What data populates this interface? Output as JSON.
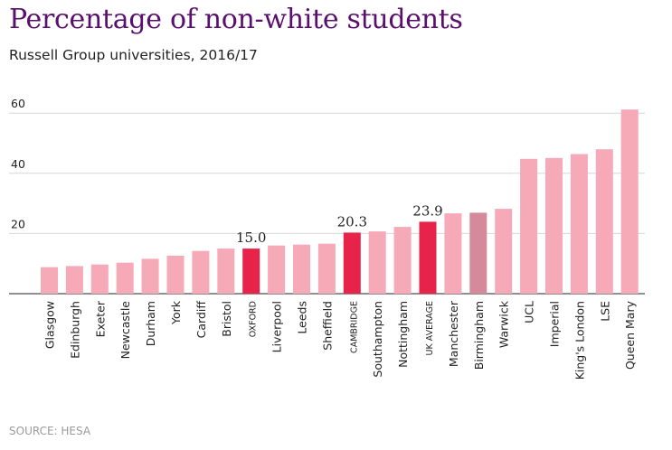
{
  "chart_data": {
    "type": "bar",
    "title": "Percentage of non-white students",
    "subtitle": "Russell Group universities, 2016/17",
    "source": "SOURCE: HESA",
    "ylim": [
      0,
      60
    ],
    "yticks": [
      20,
      40,
      60
    ],
    "grid": true,
    "categories": [
      "Glasgow",
      "Edinburgh",
      "Exeter",
      "Newcastle",
      "Durham",
      "York",
      "Cardiff",
      "Bristol",
      "OXFORD",
      "Liverpool",
      "Leeds",
      "Sheffield",
      "CAMBRIDGE",
      "Southampton",
      "Nottingham",
      "UK AVERAGE",
      "Manchester",
      "Birmingham",
      "Warwick",
      "UCL",
      "Imperial",
      "King's London",
      "LSE",
      "Queen Mary"
    ],
    "values": [
      8.8,
      9.2,
      9.7,
      10.3,
      11.6,
      12.6,
      14.2,
      15.0,
      15.0,
      16.0,
      16.3,
      16.6,
      20.3,
      20.7,
      22.2,
      23.9,
      26.7,
      26.9,
      28.2,
      44.8,
      45.1,
      46.4,
      48.0,
      61.2
    ],
    "highlight_types": [
      "normal",
      "normal",
      "normal",
      "normal",
      "normal",
      "normal",
      "normal",
      "normal",
      "highlight",
      "normal",
      "normal",
      "normal",
      "highlight",
      "normal",
      "normal",
      "highlight",
      "normal",
      "muted",
      "normal",
      "normal",
      "normal",
      "normal",
      "normal",
      "normal"
    ],
    "small_caps_labels": [
      "OXFORD",
      "CAMBRIDGE",
      "UK AVERAGE"
    ],
    "data_labels": [
      {
        "category": "OXFORD",
        "text": "15.0"
      },
      {
        "category": "CAMBRIDGE",
        "text": "20.3"
      },
      {
        "category": "UK AVERAGE",
        "text": "23.9"
      }
    ],
    "colors": {
      "normal": "#f6aab8",
      "highlight": "#e8234a",
      "muted": "#d48a9b",
      "grid": "#d6d6d6",
      "axis": "#222222"
    }
  }
}
